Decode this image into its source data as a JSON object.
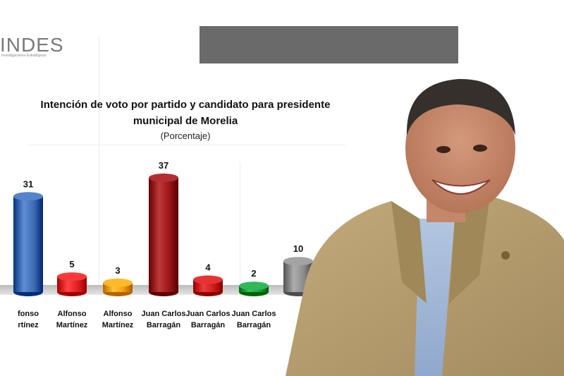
{
  "header": {
    "logo_text": "INDES",
    "logo_subtext": "Investigaciones Estratégicas"
  },
  "chart_data": {
    "type": "bar",
    "title": "Intención de voto por partido y candidato  para presidente municipal de Morelia",
    "title_line1": "Intención de voto por partido y candidato  para presidente",
    "title_line2": "municipal de Morelia",
    "subtitle": "(Porcentaje)",
    "categories": [
      "fonso\nrtínez",
      "Alfonso\nMartínez",
      "Alfonso\nMartínez",
      "Juan Carlos\nBarragán",
      "Juan Carlos\nBarragán",
      "Juan Carlos\nBarragán",
      ""
    ],
    "values": [
      31,
      5,
      3,
      37,
      4,
      2,
      10
    ],
    "colors": [
      "#3d6bb3",
      "#e02020",
      "#f0a010",
      "#9b1518",
      "#cc1a1a",
      "#18a040",
      "#8a8a8a"
    ],
    "ylim": [
      0,
      40
    ],
    "grid": false
  },
  "photo": {
    "description": "man"
  }
}
